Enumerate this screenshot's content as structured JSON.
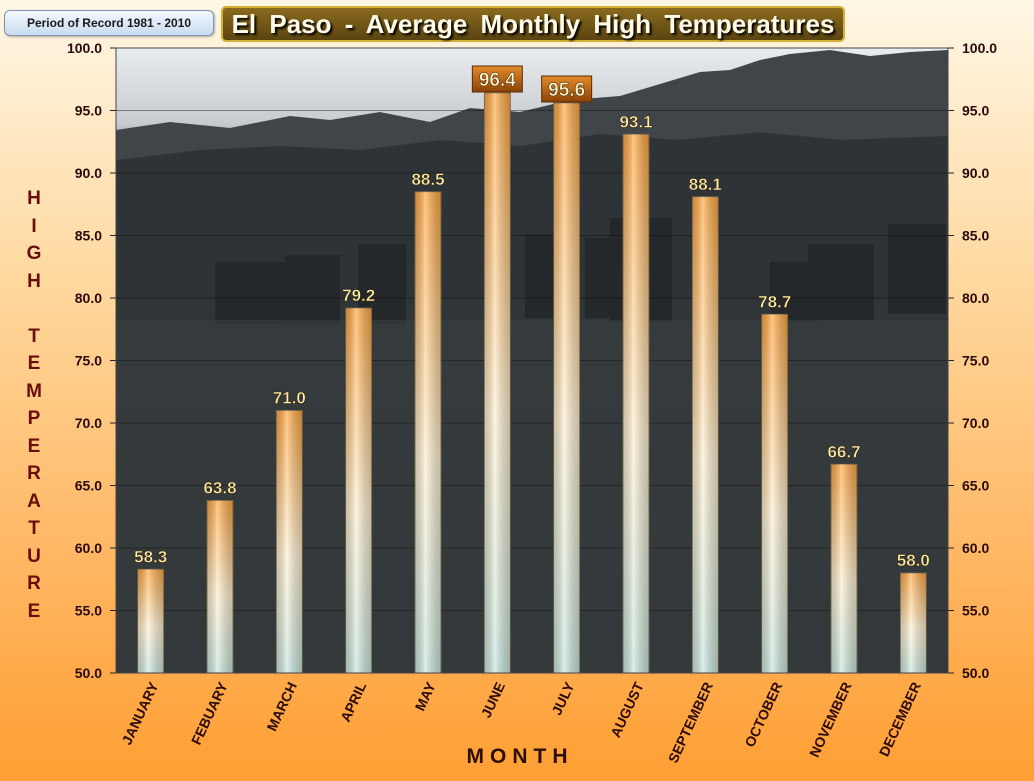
{
  "period_label": "Period of Record 1981 - 2010",
  "chart_data": {
    "type": "bar",
    "title": "El Paso - Average Monthly High Temperatures",
    "xlabel": "MONTH",
    "ylabel": "HIGH TEMPERATURE",
    "categories": [
      "JANUARY",
      "FEBUARY",
      "MARCH",
      "APRIL",
      "MAY",
      "JUNE",
      "JULY",
      "AUGUST",
      "SEPTEMBER",
      "OCTOBER",
      "NOVEMBER",
      "DECEMBER"
    ],
    "values": [
      58.3,
      63.8,
      71.0,
      79.2,
      88.5,
      96.4,
      95.6,
      93.1,
      88.1,
      78.7,
      66.7,
      58.0
    ],
    "highlighted": [
      "JUNE",
      "JULY"
    ],
    "ylim": [
      50,
      100
    ],
    "yticks": [
      "50.0",
      "55.0",
      "60.0",
      "65.0",
      "70.0",
      "75.0",
      "80.0",
      "85.0",
      "90.0",
      "95.0",
      "100.0"
    ],
    "y_axis_sides": [
      "left",
      "right"
    ],
    "grid": true,
    "background": "photo of El Paso city skyline and mountains",
    "colors": {
      "bar_low": "#d4ede6",
      "bar_high": "#ffa640",
      "label_text": "#fff2b0",
      "highlight_label_bg": "#b8600f",
      "axis_text": "#2a0a0a",
      "ylabel_text": "#6a0d0d"
    }
  }
}
